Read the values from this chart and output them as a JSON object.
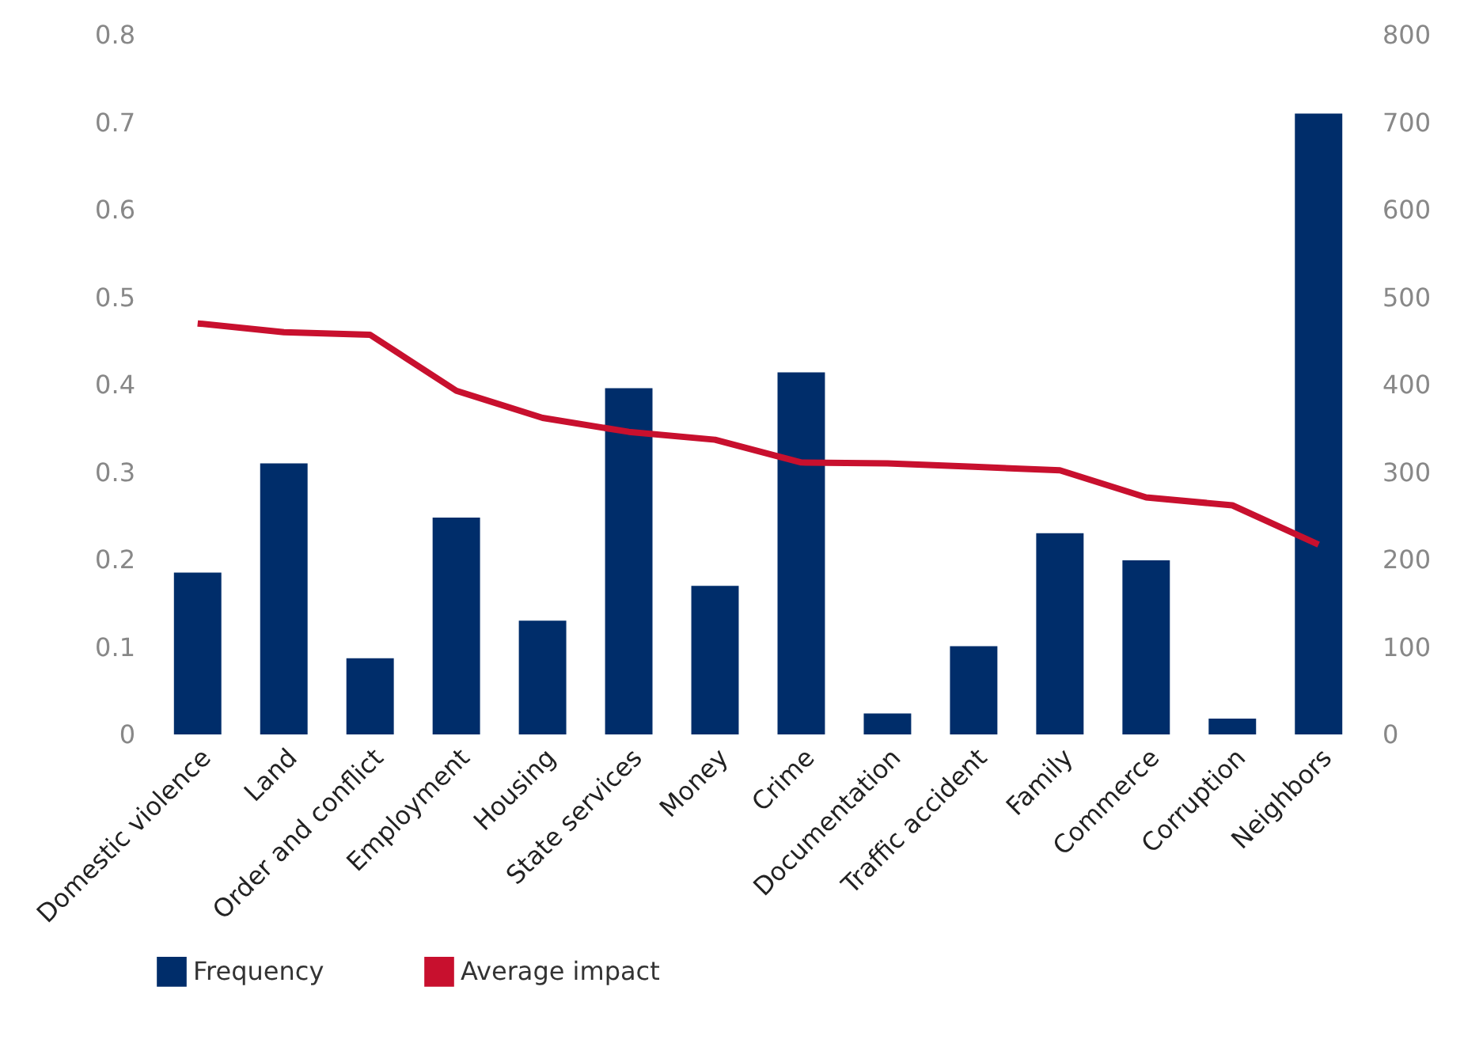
{
  "chart_data": {
    "type": "bar",
    "categories": [
      "Domestic violence",
      "Land",
      "Order and conflict",
      "Employment",
      "Housing",
      "State services",
      "Money",
      "Crime",
      "Documentation",
      "Traffic accident",
      "Family",
      "Commerce",
      "Corruption",
      "Neighbors"
    ],
    "series": [
      {
        "name": "Frequency",
        "axis": "y2",
        "color": "#002d6a",
        "values": [
          185,
          310,
          87,
          248,
          130,
          396,
          170,
          414,
          24,
          101,
          230,
          199,
          18,
          710
        ]
      },
      {
        "name": "Average impact",
        "type": "line",
        "color": "#c8102e",
        "values": [
          0.47,
          0.46,
          0.457,
          0.393,
          0.362,
          0.346,
          0.337,
          0.311,
          0.31,
          0.306,
          0.302,
          0.271,
          0.262,
          0.217
        ]
      }
    ],
    "ylim": [
      0,
      0.8
    ],
    "yticks": [
      {
        "value": 0,
        "label": "0"
      },
      0.1,
      0.2,
      0.3,
      0.4,
      0.5,
      0.6,
      0.7,
      0.8
    ],
    "y2lim": [
      0,
      800
    ],
    "y2ticks": [
      0,
      100,
      200,
      300,
      400,
      500,
      600,
      700,
      800
    ],
    "grid": false,
    "legend": "bottom"
  }
}
